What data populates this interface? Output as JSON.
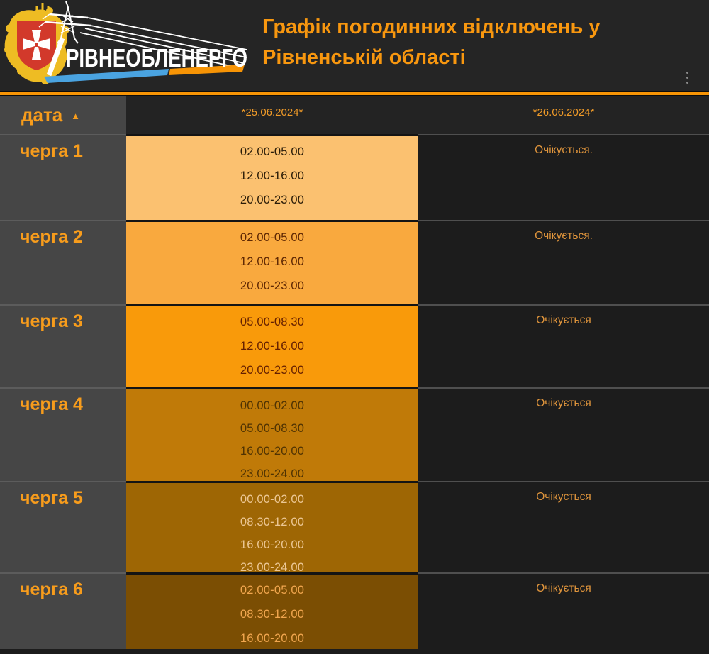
{
  "header": {
    "logo_text": "РІВНЕОБЛЕНЕРГО",
    "title": "Графік погодинних відключень у Рівненській області"
  },
  "table": {
    "date_header": "дата",
    "sort_arrow": "▲",
    "columns": [
      "*25.06.2024*",
      "*26.06.2024*"
    ],
    "rows": [
      {
        "label": "черга 1",
        "times": [
          "02.00-05.00",
          "12.00-16.00",
          "20.00-23.00"
        ],
        "status": "Очікується.",
        "bg": "#fbc170",
        "fg": "#2a1c08"
      },
      {
        "label": "черга 2",
        "times": [
          "02.00-05.00",
          "12.00-16.00",
          "20.00-23.00"
        ],
        "status": "Очікується.",
        "bg": "#f9a93e",
        "fg": "#5e2703"
      },
      {
        "label": "черга 3",
        "times": [
          "05.00-08.30",
          "12.00-16.00",
          "20.00-23.00"
        ],
        "status": "Очікується",
        "bg": "#f99a0a",
        "fg": "#641f01"
      },
      {
        "label": "черга 4",
        "times": [
          "00.00-02.00",
          "05.00-08.30",
          "16.00-20.00",
          "23.00-24.00"
        ],
        "status": "Очікується",
        "bg": "#c07a08",
        "fg": "#4f3303"
      },
      {
        "label": "черга 5",
        "times": [
          "00.00-02.00",
          "08.30-12.00",
          "16.00-20.00",
          "23.00-24.00"
        ],
        "status": "Очікується",
        "bg": "#9e6604",
        "fg": "#ecc795"
      },
      {
        "label": "черга 6",
        "times": [
          "02.00-05.00",
          "08.30-12.00",
          "16.00-20.00"
        ],
        "status": "Очікується",
        "bg": "#7b4e03",
        "fg": "#f1a64f"
      }
    ]
  },
  "colors": {
    "accent_orange": "#f8970f",
    "divider_orange": "#f79405",
    "label_orange": "#f79c1c",
    "status_orange": "#e0953c",
    "header_cell_gray": "#464646",
    "dark_cell": "#1c1c1c",
    "logo_swoosh_blue": "#4aa3e0",
    "logo_swoosh_orange": "#f79405",
    "shield_red": "#d2392b",
    "shield_gold": "#eebc23"
  }
}
